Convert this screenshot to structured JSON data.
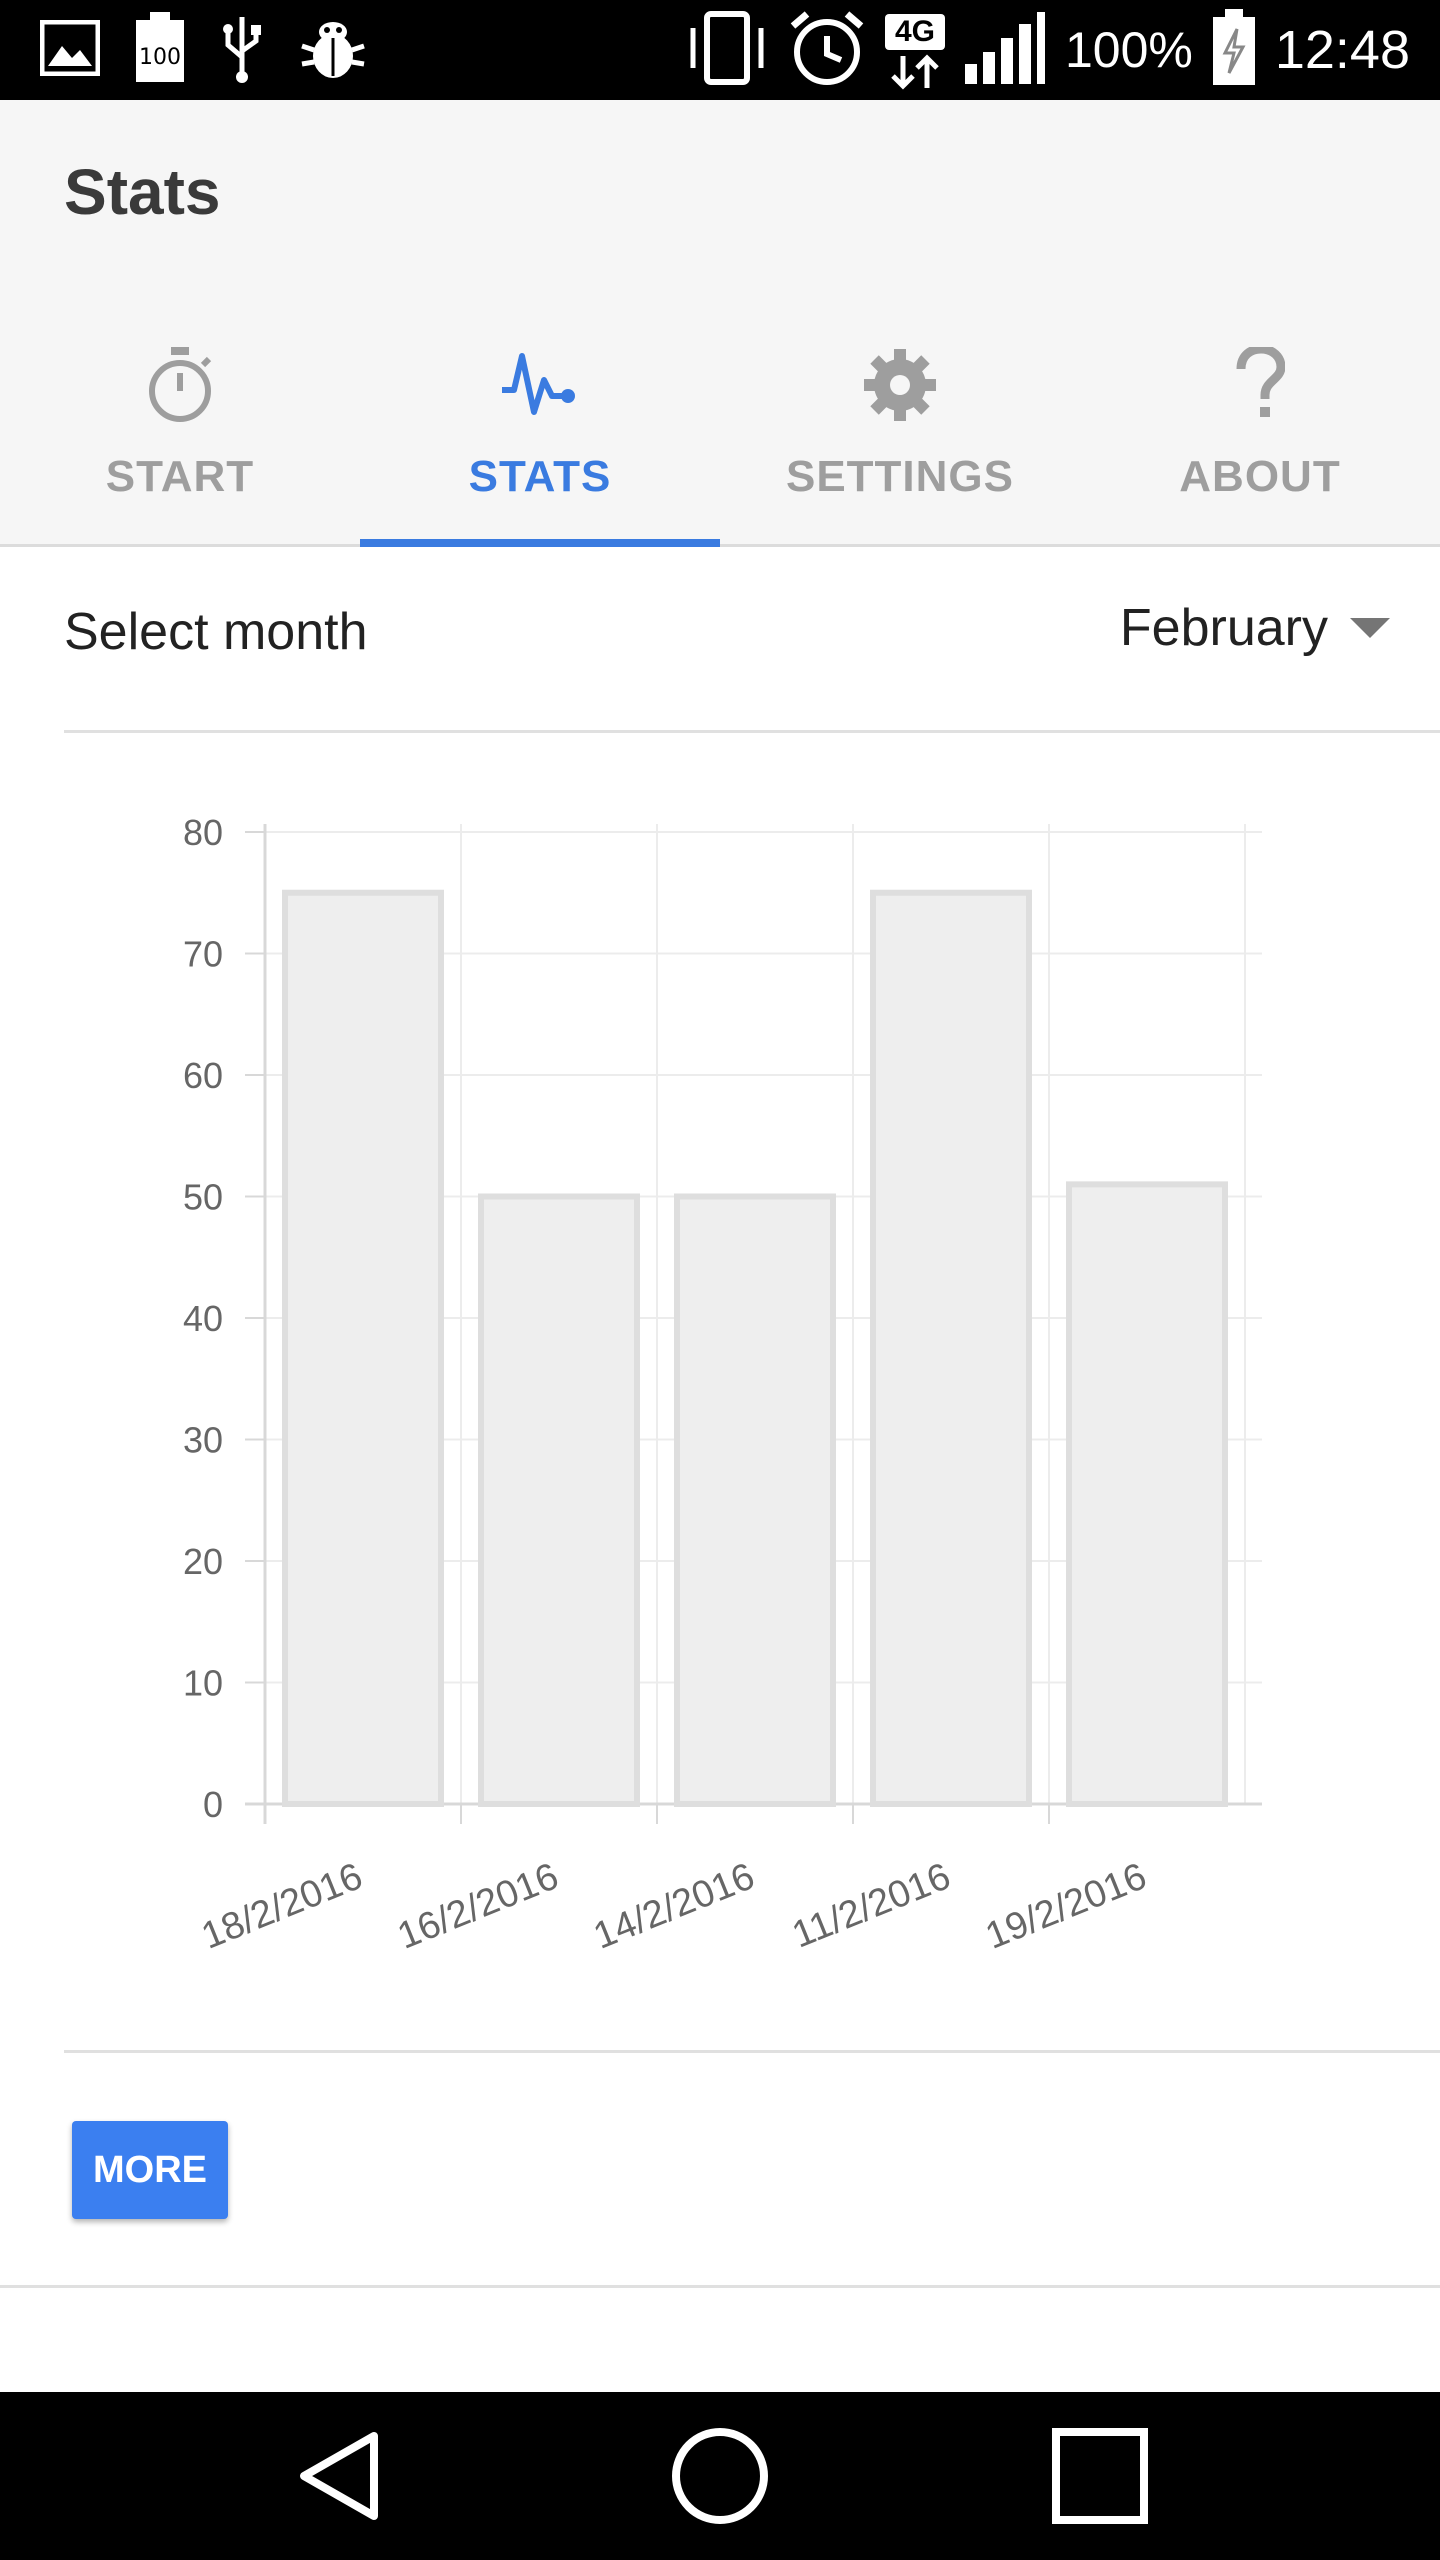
{
  "status_bar": {
    "time": "12:48",
    "battery_percent": "100%",
    "network_type": "4G",
    "icons_left": [
      "image-icon",
      "battery-100-icon",
      "usb-icon",
      "bug-icon"
    ],
    "icons_right": [
      "vibrate-icon",
      "alarm-icon",
      "network-4g-icon",
      "signal-icon",
      "battery-charging-icon"
    ]
  },
  "app_bar": {
    "title": "Stats"
  },
  "tabs": [
    {
      "label": "START",
      "icon": "stopwatch-icon",
      "active": false
    },
    {
      "label": "STATS",
      "icon": "pulse-icon",
      "active": true
    },
    {
      "label": "SETTINGS",
      "icon": "gear-icon",
      "active": false
    },
    {
      "label": "ABOUT",
      "icon": "question-icon",
      "active": false
    }
  ],
  "month_selector": {
    "label": "Select month",
    "selected": "February"
  },
  "chart_data": {
    "type": "bar",
    "categories": [
      "18/2/2016",
      "16/2/2016",
      "14/2/2016",
      "11/2/2016",
      "19/2/2016"
    ],
    "values": [
      75,
      50,
      50,
      75,
      51
    ],
    "title": "",
    "xlabel": "",
    "ylabel": "",
    "ylim": [
      0,
      80
    ],
    "yticks": [
      0,
      10,
      20,
      30,
      40,
      50,
      60,
      70,
      80
    ],
    "grid": true,
    "bar_fill": "#eeeeee",
    "bar_stroke": "#dedede"
  },
  "actions": {
    "more_label": "MORE"
  },
  "colors": {
    "accent": "#3a7be0",
    "button": "#3b7ff0",
    "inactive_tab": "#9e9e9e"
  },
  "nav_bar": {
    "buttons": [
      "back-icon",
      "home-icon",
      "recents-icon"
    ]
  }
}
